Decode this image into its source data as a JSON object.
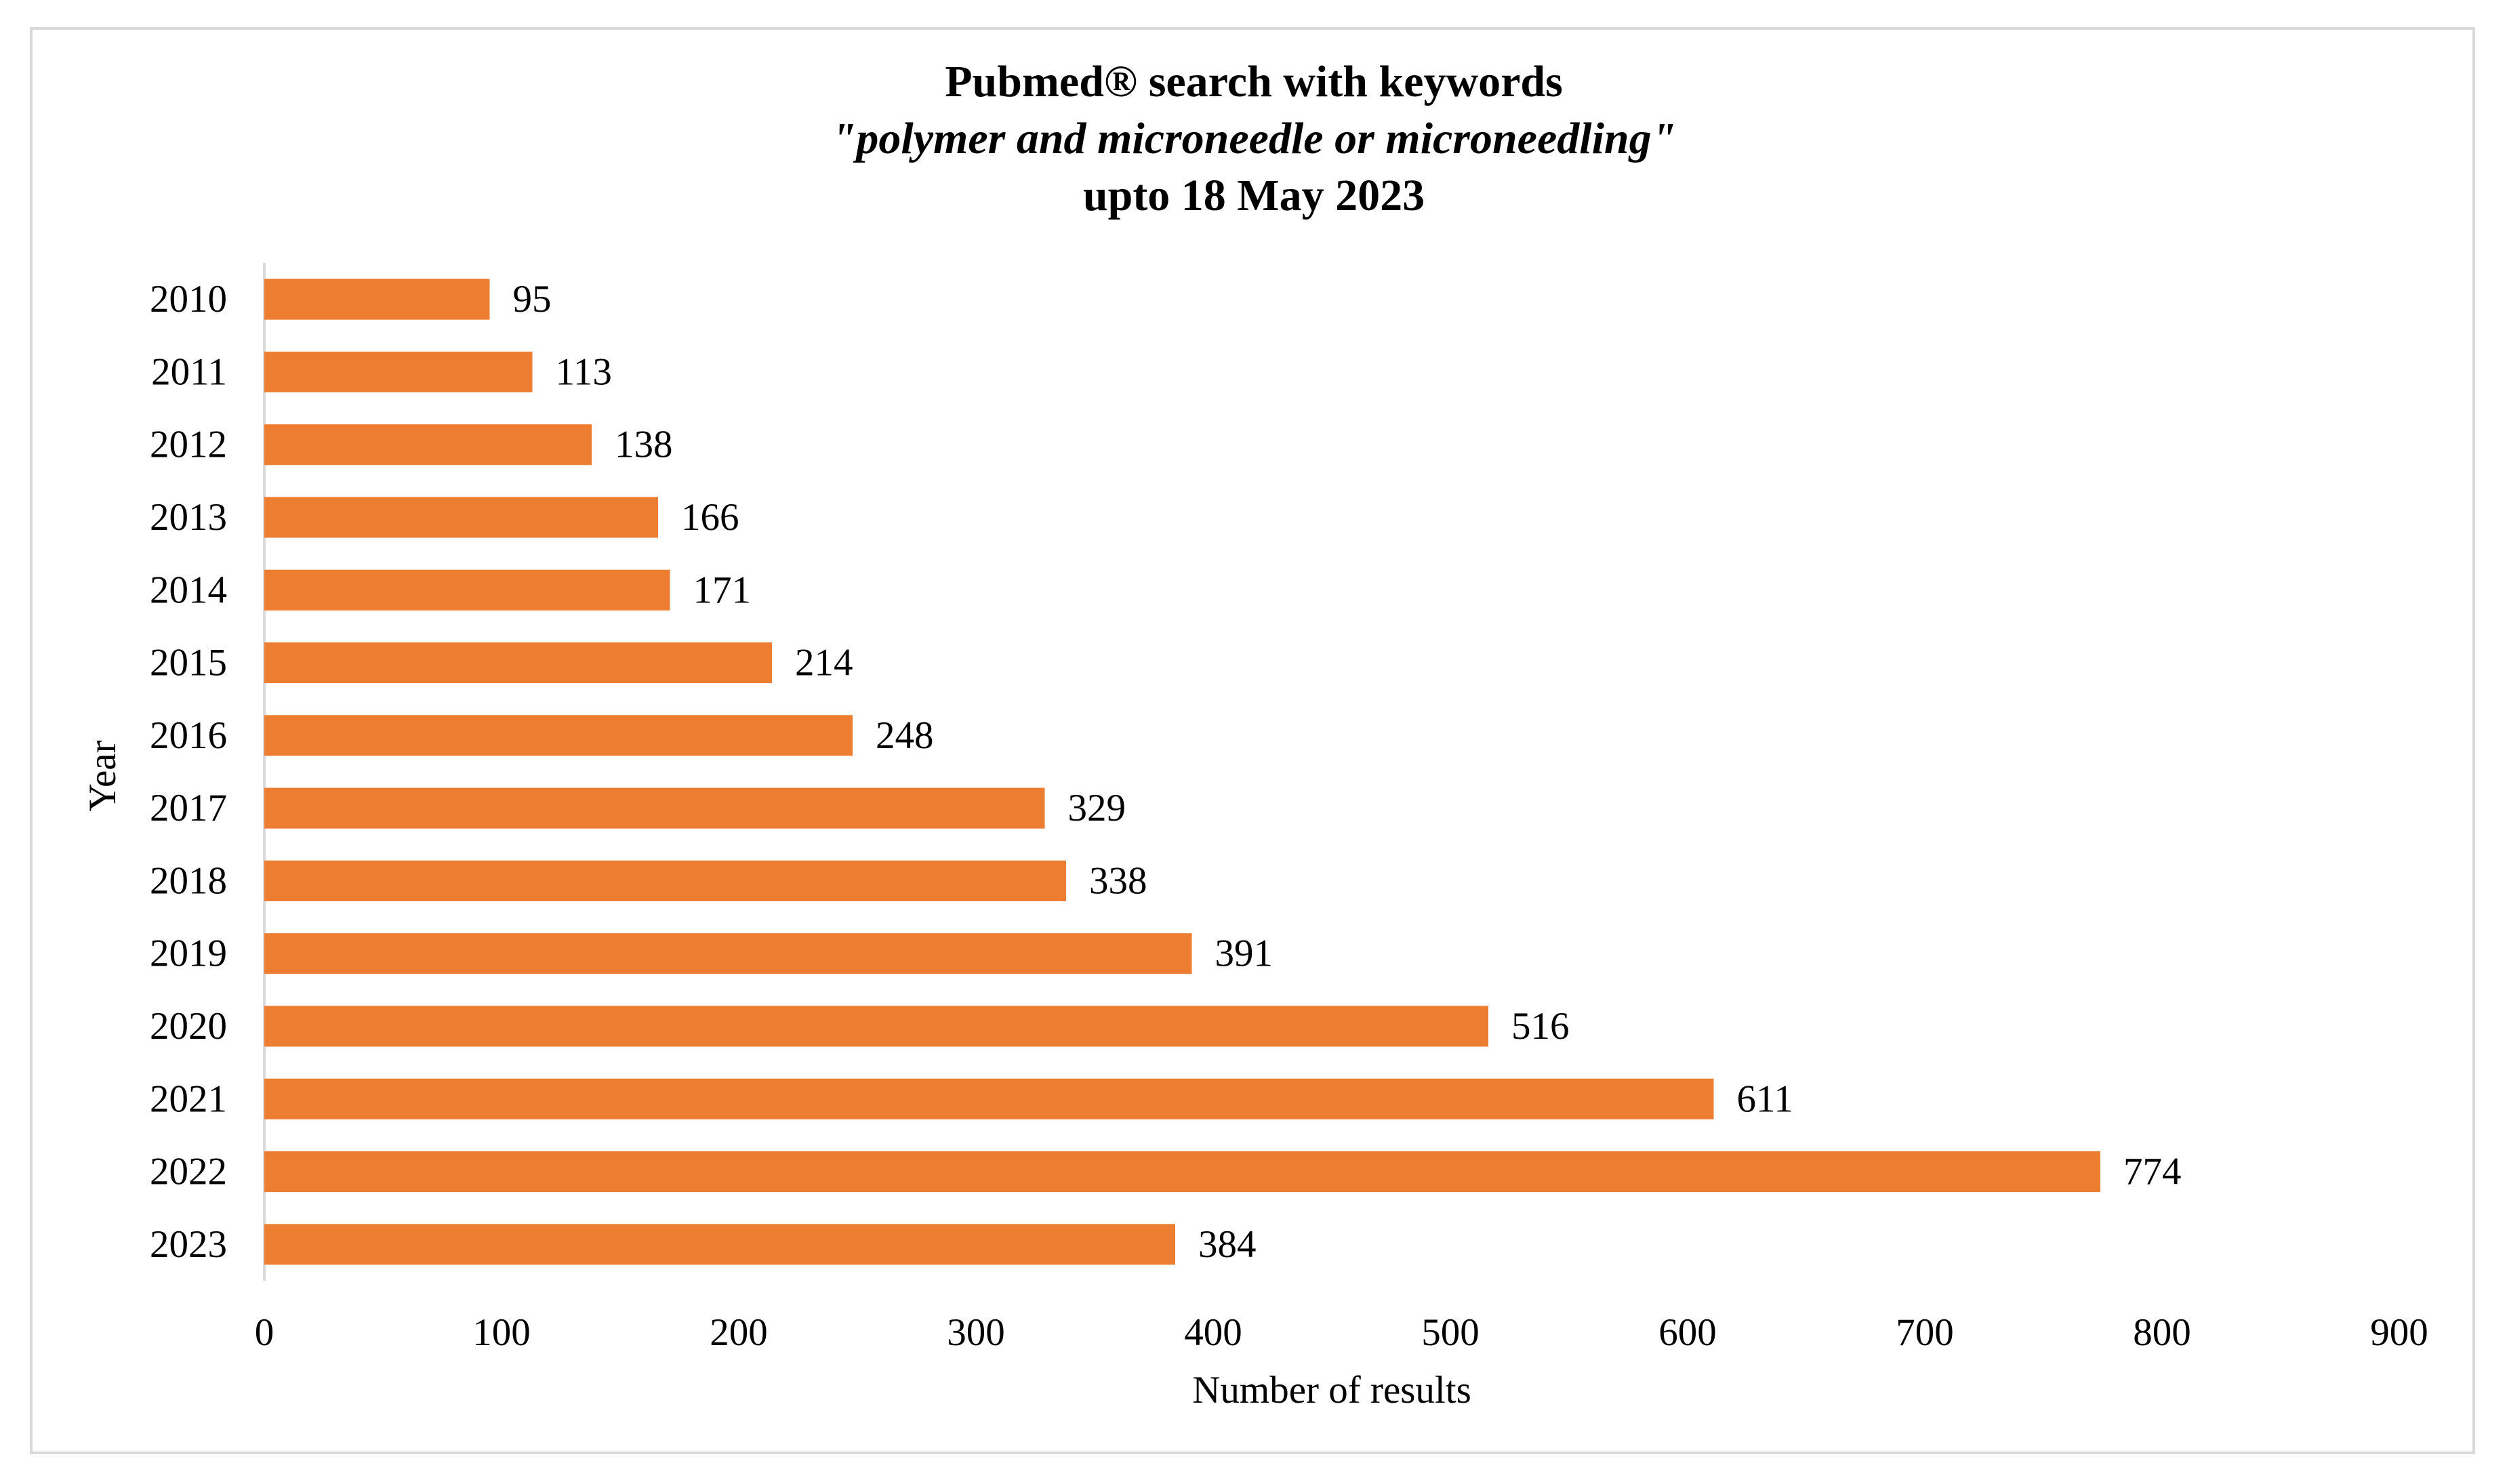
{
  "chart_data": {
    "type": "bar",
    "orientation": "horizontal",
    "title": "Pubmed® search with keywords",
    "subtitle": "\"polymer and microneedle or microneedling\"",
    "title_line3": "upto 18 May 2023",
    "xlabel": "Number of results",
    "ylabel": "Year",
    "categories": [
      "2010",
      "2011",
      "2012",
      "2013",
      "2014",
      "2015",
      "2016",
      "2017",
      "2018",
      "2019",
      "2020",
      "2021",
      "2022",
      "2023"
    ],
    "values": [
      95,
      113,
      138,
      166,
      171,
      214,
      248,
      329,
      338,
      391,
      516,
      611,
      774,
      384
    ],
    "xlim": [
      0,
      900
    ],
    "xticks": [
      0,
      100,
      200,
      300,
      400,
      500,
      600,
      700,
      800,
      900
    ],
    "grid": false,
    "legend": "none",
    "bar_color": "#ED7D31",
    "axis_color": "#d9d9d9"
  }
}
